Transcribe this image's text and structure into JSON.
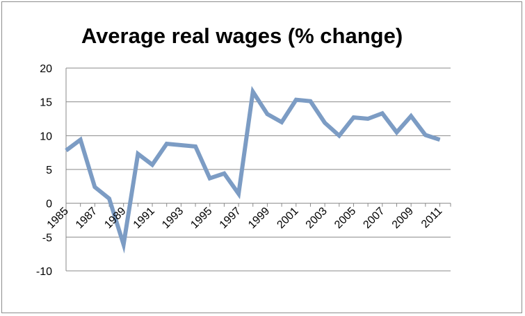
{
  "chart_data": {
    "type": "line",
    "title": "Average real wages (% change)",
    "xlabel": "",
    "ylabel": "",
    "ylim": [
      -10,
      20
    ],
    "y_ticks": [
      -10,
      -5,
      0,
      5,
      10,
      15,
      20
    ],
    "x_tick_labels": [
      "1985",
      "1987",
      "1989",
      "1991",
      "1993",
      "1995",
      "1997",
      "1999",
      "2001",
      "2003",
      "2005",
      "2007",
      "2009",
      "2011"
    ],
    "grid": "horizontal",
    "legend": "none",
    "colors": {
      "line": "#7c9cc4",
      "grid": "#8a8a8a",
      "axis": "#8a8a8a"
    },
    "series": [
      {
        "x": [
          1985,
          1986,
          1987,
          1988,
          1989,
          1990,
          1991,
          1992,
          1993,
          1994,
          1995,
          1996,
          1997,
          1998,
          1999,
          2000,
          2001,
          2002,
          2003,
          2004,
          2005,
          2006,
          2007,
          2008,
          2009,
          2010,
          2011
        ],
        "values": [
          7.8,
          9.4,
          2.4,
          0.7,
          -6.1,
          7.3,
          5.7,
          8.8,
          8.6,
          8.4,
          3.7,
          4.4,
          1.4,
          16.5,
          13.2,
          12.0,
          15.3,
          15.1,
          11.9,
          10.0,
          12.7,
          12.5,
          13.3,
          10.5,
          12.9,
          10.1,
          9.4
        ]
      }
    ]
  }
}
